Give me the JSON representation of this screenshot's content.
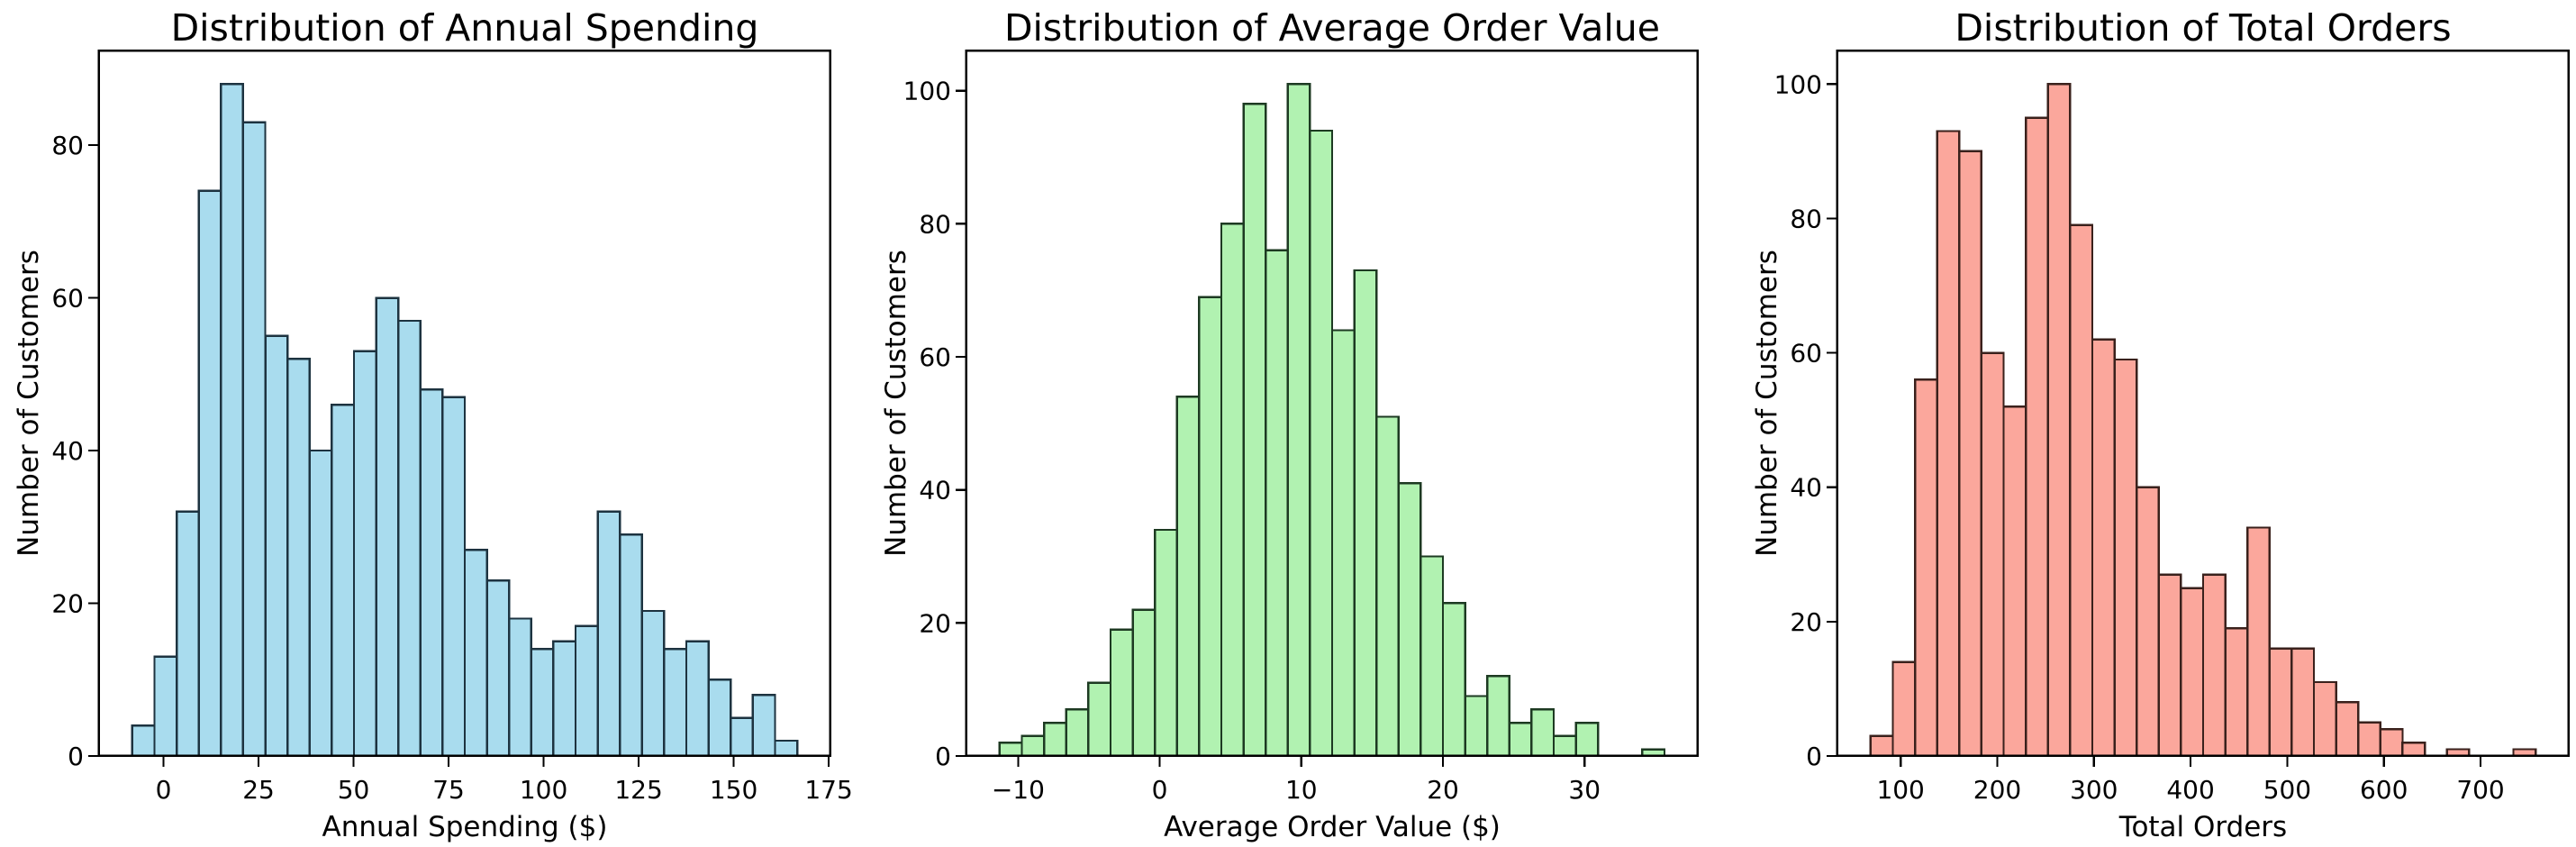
{
  "figure": {
    "background": "#ffffff",
    "text_color": "#000000",
    "axis_color": "#000000"
  },
  "chart_data": [
    {
      "type": "bar",
      "subtype": "histogram",
      "title": "Distribution of Annual Spending",
      "xlabel": "Annual Spending ($)",
      "ylabel": "Number of Customers",
      "bar_color": "#A9DCEE",
      "bar_edge_color": "#1d3340",
      "bin_start": -8.2,
      "bin_width": 5.83,
      "values": [
        4,
        13,
        32,
        74,
        88,
        83,
        55,
        52,
        40,
        46,
        53,
        60,
        57,
        48,
        47,
        27,
        23,
        18,
        14,
        15,
        17,
        32,
        29,
        19,
        14,
        15,
        10,
        5,
        8,
        2
      ],
      "xlim": [
        -16.95,
        175.45
      ],
      "ylim": [
        0,
        92.4
      ],
      "xticks": [
        0,
        25,
        50,
        75,
        100,
        125,
        150,
        175
      ],
      "xtick_labels": [
        "0",
        "25",
        "50",
        "75",
        "100",
        "125",
        "150",
        "175"
      ],
      "yticks": [
        0,
        20,
        40,
        60,
        80
      ],
      "ytick_labels": [
        "0",
        "20",
        "40",
        "60",
        "80"
      ],
      "grid": false,
      "legend": null
    },
    {
      "type": "bar",
      "subtype": "histogram",
      "title": "Distribution of Average Order Value",
      "xlabel": "Average Order Value ($)",
      "ylabel": "Number of Customers",
      "bar_color": "#B1F2B1",
      "bar_edge_color": "#1d3a22",
      "bin_start": -11.3,
      "bin_width": 1.565,
      "values": [
        2,
        3,
        5,
        7,
        11,
        19,
        22,
        34,
        54,
        69,
        80,
        98,
        76,
        101,
        94,
        64,
        73,
        51,
        41,
        30,
        23,
        9,
        12,
        5,
        7,
        3,
        5,
        0,
        0,
        1
      ],
      "xlim": [
        -13.65,
        38.0
      ],
      "ylim": [
        0,
        106.05
      ],
      "xticks": [
        -10,
        0,
        10,
        20,
        30
      ],
      "xtick_labels": [
        "−10",
        "0",
        "10",
        "20",
        "30"
      ],
      "yticks": [
        0,
        20,
        40,
        60,
        80,
        100
      ],
      "ytick_labels": [
        "0",
        "20",
        "40",
        "60",
        "80",
        "100"
      ],
      "grid": false,
      "legend": null
    },
    {
      "type": "bar",
      "subtype": "histogram",
      "title": "Distribution of Total Orders",
      "xlabel": "Total Orders",
      "ylabel": "Number of Customers",
      "bar_color": "#FBA79C",
      "bar_edge_color": "#3a211c",
      "bin_start": 69.0,
      "bin_width": 22.93,
      "values": [
        3,
        14,
        56,
        93,
        90,
        60,
        52,
        95,
        100,
        79,
        62,
        59,
        40,
        27,
        25,
        27,
        19,
        34,
        16,
        16,
        11,
        8,
        5,
        4,
        2,
        0,
        1,
        0,
        0,
        1
      ],
      "xlim": [
        34.6,
        791.3
      ],
      "ylim": [
        0,
        105.0
      ],
      "xticks": [
        100,
        200,
        300,
        400,
        500,
        600,
        700
      ],
      "xtick_labels": [
        "100",
        "200",
        "300",
        "400",
        "500",
        "600",
        "700"
      ],
      "yticks": [
        0,
        20,
        40,
        60,
        80,
        100
      ],
      "ytick_labels": [
        "0",
        "20",
        "40",
        "60",
        "80",
        "100"
      ],
      "grid": false,
      "legend": null
    }
  ]
}
